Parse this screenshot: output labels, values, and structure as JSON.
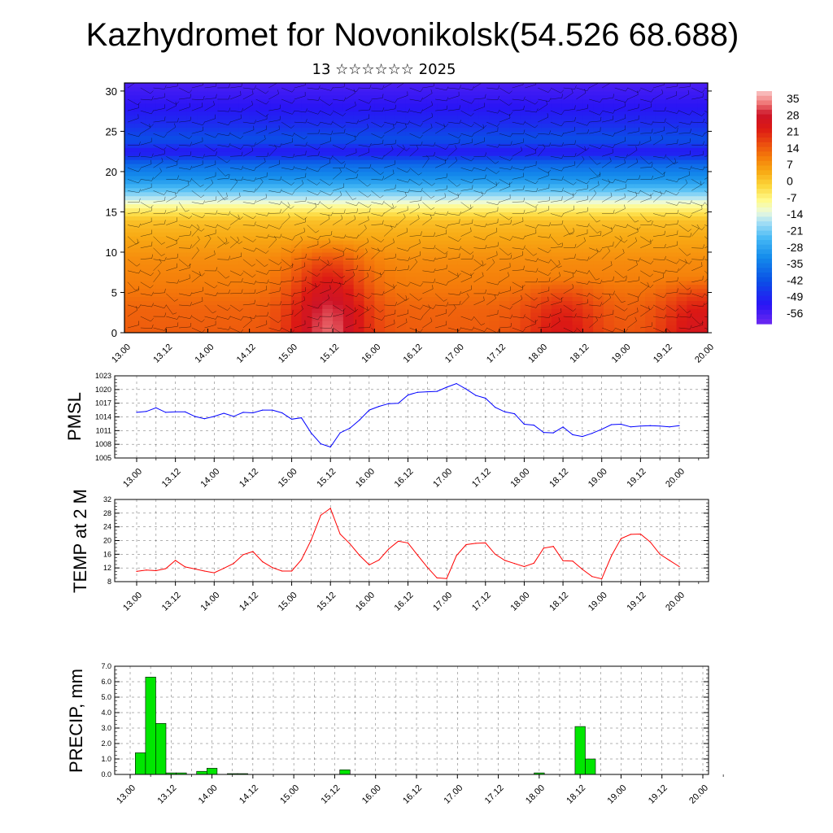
{
  "header": {
    "title": "Kazhydromet for Novonikolsk(54.526 68.688)",
    "subtitle": "13 ☆☆☆☆☆☆ 2025"
  },
  "time_ticks": [
    "13.00",
    "13.12",
    "14.00",
    "14.12",
    "15.00",
    "15.12",
    "16.00",
    "16.12",
    "17.00",
    "17.12",
    "18.00",
    "18.12",
    "19.00",
    "19.12",
    "20.00"
  ],
  "chart_data": [
    {
      "id": "cross-section",
      "type": "heatmap",
      "title": "",
      "xlabel": "",
      "ylabel": "",
      "x_categories": [
        "13.00",
        "13.12",
        "14.00",
        "14.12",
        "15.00",
        "15.12",
        "16.00",
        "16.12",
        "17.00",
        "17.12",
        "18.00",
        "18.12",
        "19.00",
        "19.12",
        "20.00"
      ],
      "ylim": [
        0,
        31
      ],
      "yticks": [
        0,
        5,
        10,
        15,
        20,
        25,
        30
      ],
      "colorbar": {
        "labels": [
          "35",
          "28",
          "21",
          "14",
          "7",
          "0",
          "-7",
          "-14",
          "-21",
          "-28",
          "-35",
          "-42",
          "-49",
          "-56"
        ],
        "range": [
          -60,
          38
        ]
      },
      "temperature_profile_by_height": {
        "height": [
          0,
          3,
          6,
          9,
          12,
          14,
          15.5,
          17,
          19,
          21,
          22.5,
          24,
          26,
          28,
          31
        ],
        "value": [
          14,
          13,
          10,
          8,
          4,
          1,
          -7,
          -18,
          -30,
          -38,
          -52,
          -42,
          -48,
          -52,
          -56
        ]
      },
      "warm_cores": [
        {
          "time_index": 4.9,
          "height_top": 12,
          "delta": 18
        },
        {
          "time_index": 10.5,
          "height_top": 7,
          "delta": 9
        },
        {
          "time_index": 13.8,
          "height_top": 7,
          "delta": 11
        }
      ],
      "wind_barbs": true
    },
    {
      "id": "pmsl",
      "type": "line",
      "title": "",
      "xlabel": "",
      "ylabel": "PMSL",
      "ylim": [
        1005,
        1023
      ],
      "yticks": [
        1005,
        1008,
        1011,
        1014,
        1017,
        1020,
        1023
      ],
      "x_categories": [
        "13.00",
        "13.12",
        "14.00",
        "14.12",
        "15.00",
        "15.12",
        "16.00",
        "16.12",
        "17.00",
        "17.12",
        "18.00",
        "18.12",
        "19.00",
        "19.12",
        "20.00"
      ],
      "color": "#0000ff",
      "series": [
        {
          "x": [
            0,
            0.25,
            0.5,
            0.75,
            1,
            1.25,
            1.5,
            1.75,
            2,
            2.25,
            2.5,
            2.75,
            3,
            3.25,
            3.5,
            3.75,
            4,
            4.25,
            4.5,
            4.75,
            5,
            5.25,
            5.5,
            5.75,
            6,
            6.25,
            6.5,
            6.75,
            7,
            7.25,
            7.5,
            7.75,
            8,
            8.25,
            8.5,
            8.75,
            9,
            9.25,
            9.5,
            9.75,
            10,
            10.25,
            10.5,
            10.75,
            11,
            11.25,
            11.5,
            11.75,
            12,
            12.25,
            12.5,
            12.75,
            13,
            13.25,
            13.5,
            13.75,
            14
          ],
          "values": [
            1015,
            1015.2,
            1016,
            1015,
            1015.1,
            1015.1,
            1014.1,
            1013.6,
            1014.1,
            1014.8,
            1014.1,
            1015,
            1014.9,
            1015.5,
            1015.5,
            1014.9,
            1013.5,
            1013.8,
            1010.5,
            1008.1,
            1007.4,
            1010.5,
            1011.5,
            1013.3,
            1015.5,
            1016.3,
            1016.9,
            1017,
            1018.8,
            1019.4,
            1019.5,
            1019.6,
            1020.5,
            1021.3,
            1020.1,
            1018.7,
            1018.1,
            1016.1,
            1015.1,
            1014.7,
            1012.4,
            1012.2,
            1010.6,
            1010.5,
            1011.8,
            1010.1,
            1009.7,
            1010.4,
            1011.3,
            1012.3,
            1012.4,
            1011.8,
            1012,
            1012.1,
            1012,
            1011.8,
            1012.1
          ]
        }
      ]
    },
    {
      "id": "temp2m",
      "type": "line",
      "title": "",
      "xlabel": "",
      "ylabel": "TEMP at 2 M",
      "ylim": [
        8,
        32
      ],
      "yticks": [
        8,
        12,
        16,
        20,
        24,
        28,
        32
      ],
      "x_categories": [
        "13.00",
        "13.12",
        "14.00",
        "14.12",
        "15.00",
        "15.12",
        "16.00",
        "16.12",
        "17.00",
        "17.12",
        "18.00",
        "18.12",
        "19.00",
        "19.12",
        "20.00"
      ],
      "color": "#ff0000",
      "series": [
        {
          "x": [
            0,
            0.25,
            0.5,
            0.75,
            1,
            1.25,
            1.5,
            1.75,
            2,
            2.25,
            2.5,
            2.75,
            3,
            3.25,
            3.5,
            3.75,
            4,
            4.25,
            4.5,
            4.75,
            5,
            5.25,
            5.5,
            5.75,
            6,
            6.25,
            6.5,
            6.75,
            7,
            7.25,
            7.5,
            7.75,
            8,
            8.25,
            8.5,
            8.75,
            9,
            9.25,
            9.5,
            9.75,
            10,
            10.25,
            10.5,
            10.75,
            11,
            11.25,
            11.5,
            11.75,
            12,
            12.25,
            12.5,
            12.75,
            13,
            13.25,
            13.5,
            13.75,
            14
          ],
          "values": [
            11,
            11.4,
            11.2,
            11.8,
            14.2,
            12.3,
            11.7,
            11.1,
            10.6,
            11.9,
            13.3,
            15.9,
            16.8,
            13.8,
            12.1,
            11.1,
            11.1,
            14.4,
            20.1,
            27.4,
            29.4,
            21.9,
            19.1,
            15.7,
            12.9,
            14.3,
            17.5,
            19.8,
            19.3,
            15.7,
            12.2,
            9.1,
            8.9,
            15.6,
            18.8,
            19.2,
            19.3,
            16,
            14.2,
            13.3,
            12.4,
            13.4,
            17.8,
            18.3,
            14.1,
            14,
            11.6,
            9.5,
            8.8,
            15.5,
            20.6,
            21.8,
            21.9,
            19.6,
            16,
            14.2,
            12.4
          ]
        }
      ]
    },
    {
      "id": "precip",
      "type": "bar",
      "title": "",
      "xlabel": "",
      "ylabel": "PRECIP, mm",
      "ylim": [
        0,
        7
      ],
      "yticks": [
        "0.0",
        "1.0",
        "2.0",
        "3.0",
        "4.0",
        "5.0",
        "6.0",
        "7.0"
      ],
      "x_categories": [
        "13.00",
        "13.12",
        "14.00",
        "14.12",
        "15.00",
        "15.12",
        "16.00",
        "16.12",
        "17.00",
        "17.12",
        "18.00",
        "18.12",
        "19.00",
        "19.12",
        "20.00"
      ],
      "color": "#00e600",
      "bars": [
        {
          "x": 0.25,
          "value": 1.4
        },
        {
          "x": 0.5,
          "value": 6.3
        },
        {
          "x": 0.75,
          "value": 3.3
        },
        {
          "x": 1.0,
          "value": 0.1
        },
        {
          "x": 1.25,
          "value": 0.1
        },
        {
          "x": 1.75,
          "value": 0.2
        },
        {
          "x": 2.0,
          "value": 0.4
        },
        {
          "x": 2.5,
          "value": 0.05
        },
        {
          "x": 2.75,
          "value": 0.05
        },
        {
          "x": 5.25,
          "value": 0.3
        },
        {
          "x": 10.0,
          "value": 0.1
        },
        {
          "x": 11.0,
          "value": 3.1
        },
        {
          "x": 11.25,
          "value": 1.0
        }
      ]
    }
  ]
}
